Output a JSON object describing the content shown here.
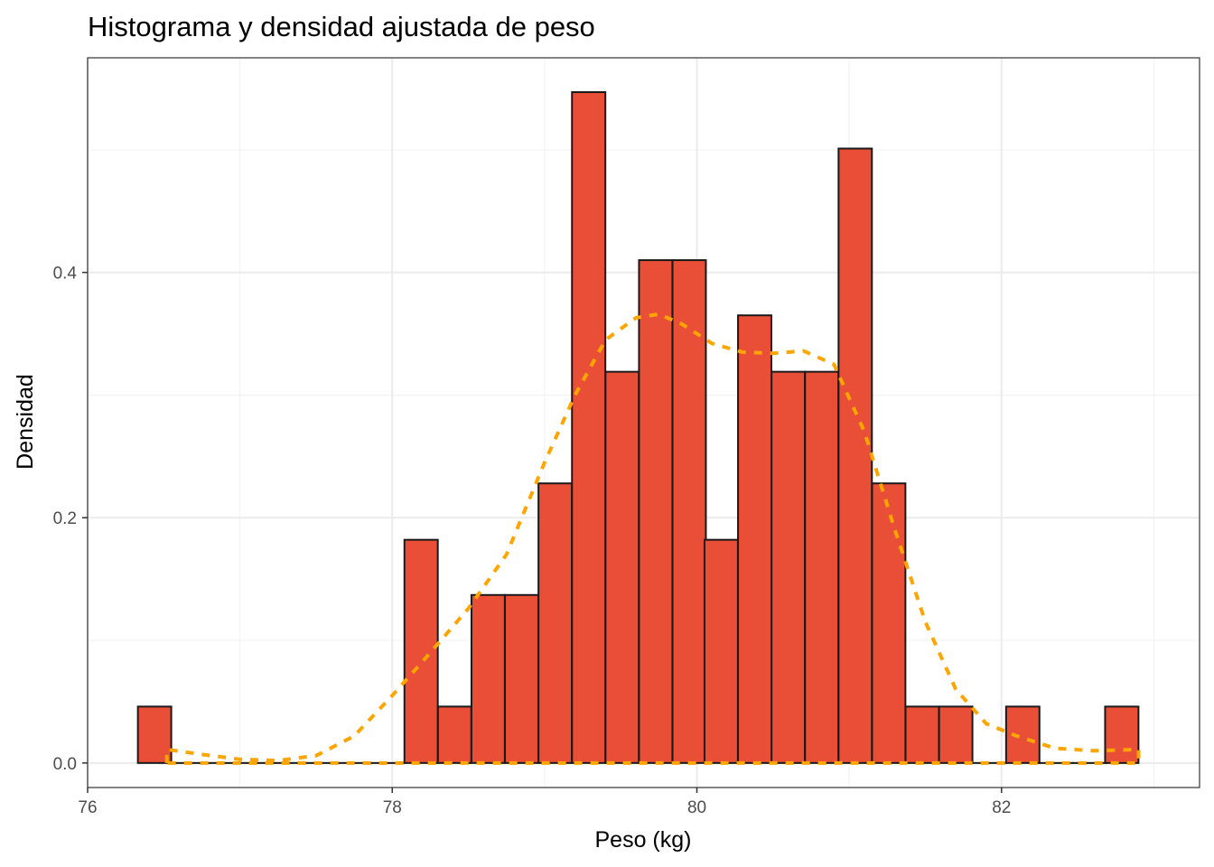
{
  "chart_data": {
    "type": "bar",
    "title": "Histograma y densidad ajustada de peso",
    "xlabel": "Peso (kg)",
    "ylabel": "Densidad",
    "xlim": [
      76.0,
      83.3
    ],
    "ylim": [
      -0.02,
      0.575
    ],
    "x_ticks": [
      76,
      78,
      80,
      82
    ],
    "x_tick_labels": [
      "76",
      "78",
      "80",
      "82"
    ],
    "y_ticks": [
      0.0,
      0.2,
      0.4
    ],
    "y_tick_labels": [
      "0.0",
      "0.2",
      "0.4"
    ],
    "grid": true,
    "bin_width": 0.219,
    "bins": [
      {
        "x0": 76.33,
        "value": 0.046
      },
      {
        "x0": 76.55,
        "value": 0.0
      },
      {
        "x0": 76.77,
        "value": 0.0
      },
      {
        "x0": 76.99,
        "value": 0.0
      },
      {
        "x0": 77.2,
        "value": 0.0
      },
      {
        "x0": 77.42,
        "value": 0.0
      },
      {
        "x0": 77.64,
        "value": 0.0
      },
      {
        "x0": 77.86,
        "value": 0.0
      },
      {
        "x0": 78.08,
        "value": 0.182
      },
      {
        "x0": 78.3,
        "value": 0.046
      },
      {
        "x0": 78.52,
        "value": 0.137
      },
      {
        "x0": 78.74,
        "value": 0.137
      },
      {
        "x0": 78.96,
        "value": 0.228
      },
      {
        "x0": 79.18,
        "value": 0.547
      },
      {
        "x0": 79.4,
        "value": 0.319
      },
      {
        "x0": 79.62,
        "value": 0.41
      },
      {
        "x0": 79.84,
        "value": 0.41
      },
      {
        "x0": 80.05,
        "value": 0.182
      },
      {
        "x0": 80.27,
        "value": 0.365
      },
      {
        "x0": 80.49,
        "value": 0.319
      },
      {
        "x0": 80.71,
        "value": 0.319
      },
      {
        "x0": 80.93,
        "value": 0.501
      },
      {
        "x0": 81.15,
        "value": 0.228
      },
      {
        "x0": 81.37,
        "value": 0.046
      },
      {
        "x0": 81.59,
        "value": 0.046
      },
      {
        "x0": 81.81,
        "value": 0.0
      },
      {
        "x0": 82.03,
        "value": 0.046
      },
      {
        "x0": 82.25,
        "value": 0.0
      },
      {
        "x0": 82.47,
        "value": 0.0
      },
      {
        "x0": 82.68,
        "value": 0.046
      }
    ],
    "density_curve": [
      [
        76.52,
        0.011
      ],
      [
        76.75,
        0.007
      ],
      [
        77.0,
        0.003
      ],
      [
        77.25,
        0.002
      ],
      [
        77.5,
        0.006
      ],
      [
        77.75,
        0.022
      ],
      [
        78.0,
        0.055
      ],
      [
        78.25,
        0.09
      ],
      [
        78.5,
        0.126
      ],
      [
        78.75,
        0.17
      ],
      [
        79.0,
        0.245
      ],
      [
        79.2,
        0.3
      ],
      [
        79.4,
        0.345
      ],
      [
        79.6,
        0.363
      ],
      [
        79.75,
        0.366
      ],
      [
        79.9,
        0.358
      ],
      [
        80.1,
        0.342
      ],
      [
        80.3,
        0.335
      ],
      [
        80.5,
        0.334
      ],
      [
        80.7,
        0.336
      ],
      [
        80.9,
        0.325
      ],
      [
        81.1,
        0.27
      ],
      [
        81.3,
        0.19
      ],
      [
        81.5,
        0.115
      ],
      [
        81.7,
        0.06
      ],
      [
        81.9,
        0.032
      ],
      [
        82.1,
        0.022
      ],
      [
        82.35,
        0.012
      ],
      [
        82.6,
        0.01
      ],
      [
        82.9,
        0.011
      ]
    ],
    "colors": {
      "bar_fill": "#e94e36",
      "bar_stroke": "#1a1a1a",
      "density_line": "#ffa500",
      "grid_major": "#ebebeb",
      "grid_minor": "#f2f2f2",
      "panel_border": "#333333"
    }
  }
}
